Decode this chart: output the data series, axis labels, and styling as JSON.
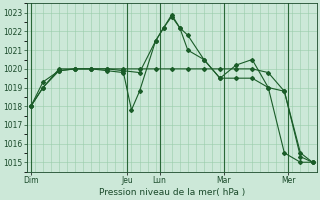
{
  "xlabel": "Pression niveau de la mer( hPa )",
  "bg_color": "#cce8d8",
  "grid_color": "#99ccaa",
  "line_color": "#1a5c28",
  "ylim": [
    1014.5,
    1023.5
  ],
  "yticks": [
    1015,
    1016,
    1017,
    1018,
    1019,
    1020,
    1021,
    1022,
    1023
  ],
  "xlim": [
    0,
    36
  ],
  "day_labels": [
    "Dim",
    "Jeu",
    "Lun",
    "Mar",
    "Mer"
  ],
  "day_positions": [
    0.5,
    12.5,
    16.5,
    24.5,
    32.5
  ],
  "day_vlines": [
    0.5,
    12.5,
    16.5,
    24.5,
    32.5
  ],
  "series": [
    {
      "x": [
        0.5,
        2,
        4,
        6,
        8,
        10,
        12,
        14,
        16,
        18,
        20,
        22,
        24,
        26,
        28,
        30,
        32,
        34,
        35.5
      ],
      "y": [
        1018.0,
        1019.3,
        1019.9,
        1020.0,
        1020.0,
        1020.0,
        1020.0,
        1020.0,
        1020.0,
        1020.0,
        1020.0,
        1020.0,
        1020.0,
        1020.0,
        1020.0,
        1019.8,
        1018.8,
        1015.3,
        1015.0
      ]
    },
    {
      "x": [
        0.5,
        2,
        4,
        6,
        8,
        10,
        12,
        14,
        16,
        17,
        18,
        19,
        20,
        22,
        24,
        26,
        28,
        30,
        32,
        34,
        35.5
      ],
      "y": [
        1018.0,
        1019.0,
        1019.9,
        1020.0,
        1020.0,
        1020.0,
        1019.9,
        1019.8,
        1021.5,
        1022.2,
        1022.9,
        1022.2,
        1021.8,
        1020.5,
        1019.5,
        1019.5,
        1019.5,
        1019.0,
        1018.8,
        1015.5,
        1015.0
      ]
    },
    {
      "x": [
        0.5,
        2,
        4,
        6,
        8,
        10,
        12,
        13,
        14,
        16,
        17,
        18,
        19,
        20,
        22,
        24,
        26,
        28,
        30,
        32,
        34,
        35.5
      ],
      "y": [
        1018.0,
        1019.0,
        1020.0,
        1020.0,
        1020.0,
        1019.9,
        1019.8,
        1017.8,
        1018.8,
        1021.5,
        1022.2,
        1022.8,
        1022.2,
        1021.0,
        1020.5,
        1019.5,
        1020.2,
        1020.5,
        1019.0,
        1015.5,
        1015.0,
        1015.0
      ]
    }
  ]
}
